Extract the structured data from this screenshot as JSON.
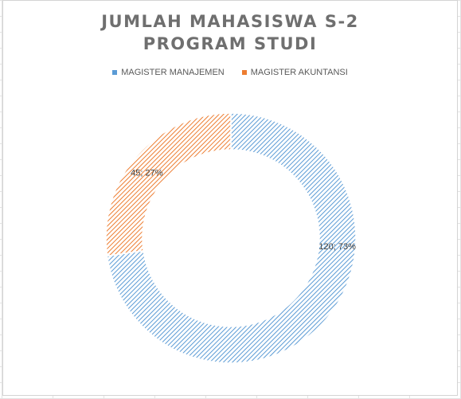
{
  "chart_data": {
    "type": "pie",
    "title": [
      "JUMLAH MAHASISWA S-2",
      "PROGRAM STUDI"
    ],
    "legend_position": "top",
    "series": [
      {
        "name": "MAGISTER MANAJEMEN",
        "value": 120,
        "percent": 73,
        "label": "120; 73%",
        "color": "#5b9bd5"
      },
      {
        "name": "MAGISTER AKUNTANSI",
        "value": 45,
        "percent": 27,
        "label": "45; 27%",
        "color": "#ed7d31"
      }
    ]
  }
}
